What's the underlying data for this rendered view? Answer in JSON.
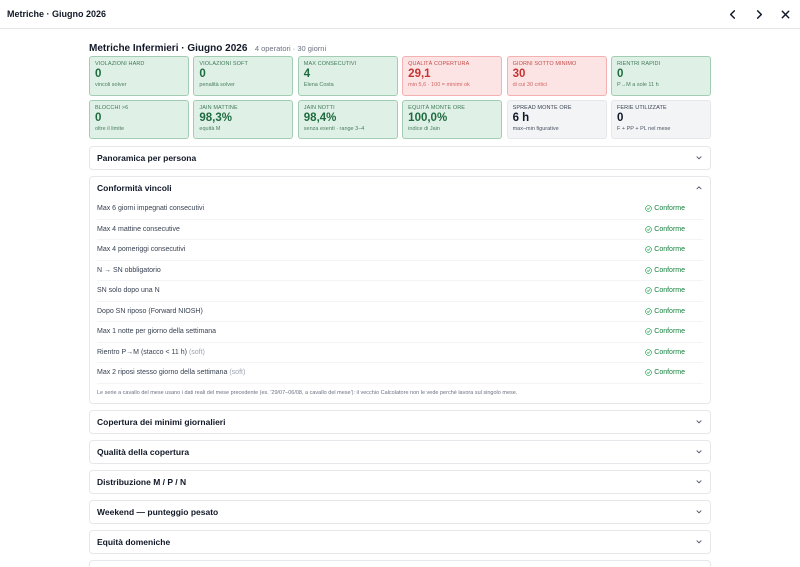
{
  "window": {
    "title": "Metriche · Giugno 2026"
  },
  "icons": {
    "prev": "chevron-left-icon",
    "next": "chevron-right-icon",
    "close": "close-icon",
    "ok": "check-circle-icon",
    "expand": "chevron-down-icon",
    "collapse": "chevron-up-icon"
  },
  "heading": {
    "title": "Metriche Infermieri · Giugno 2026",
    "subtitle": "4 operatori · 30 giorni"
  },
  "cards": [
    {
      "label": "Violazioni hard",
      "value": "0",
      "note": "vincoli solver",
      "tone": "green"
    },
    {
      "label": "Violazioni soft",
      "value": "0",
      "note": "penalità solver",
      "tone": "green"
    },
    {
      "label": "Max consecutivi",
      "value": "4",
      "note": "Elena Costa",
      "tone": "green"
    },
    {
      "label": "Qualità copertura",
      "value": "29,1",
      "note": "min 5,6 · 100 = minimi ok",
      "tone": "red"
    },
    {
      "label": "Giorni sotto minimo",
      "value": "30",
      "note": "di cui 30 critici",
      "tone": "red"
    },
    {
      "label": "Rientri rapidi",
      "value": "0",
      "note": "P→M a sole 11 h",
      "tone": "green"
    },
    {
      "label": "Blocchi >6",
      "value": "0",
      "note": "oltre il limite",
      "tone": "green"
    },
    {
      "label": "Jain mattine",
      "value": "98,3%",
      "note": "equità M",
      "tone": "green"
    },
    {
      "label": "Jain notti",
      "value": "98,4%",
      "note": "senza esenti · range 3–4",
      "tone": "green"
    },
    {
      "label": "Equità monte ore",
      "value": "100,0%",
      "note": "indice di Jain",
      "tone": "green"
    },
    {
      "label": "Spread monte ore",
      "value": "6 h",
      "note": "max–min figurative",
      "tone": "gray"
    },
    {
      "label": "Ferie utilizzate",
      "value": "0",
      "note": "F + PP + PL nel mese",
      "tone": "gray"
    }
  ],
  "sections": {
    "panoramica": "Panoramica per persona",
    "conformita": "Conformità vincoli",
    "copertura": "Copertura dei minimi giornalieri",
    "qualita": "Qualità della copertura",
    "distribuzione": "Distribuzione M / P / N",
    "weekend": "Weekend — punteggio pesato",
    "domeniche": "Equità domeniche"
  },
  "constraints": [
    {
      "label": "Max 6 giorni impegnati consecutivi",
      "soft": "",
      "status": "Conforme"
    },
    {
      "label": "Max 4 mattine consecutive",
      "soft": "",
      "status": "Conforme"
    },
    {
      "label": "Max 4 pomeriggi consecutivi",
      "soft": "",
      "status": "Conforme"
    },
    {
      "label": "N → SN obbligatorio",
      "soft": "",
      "status": "Conforme"
    },
    {
      "label": "SN solo dopo una N",
      "soft": "",
      "status": "Conforme"
    },
    {
      "label": "Dopo SN riposo (Forward NIOSH)",
      "soft": "",
      "status": "Conforme"
    },
    {
      "label": "Max 1 notte per giorno della settimana",
      "soft": "",
      "status": "Conforme"
    },
    {
      "label": "Rientro P→M (stacco < 11 h)",
      "soft": "(soft)",
      "status": "Conforme"
    },
    {
      "label": "Max 2 riposi stesso giorno della settimana",
      "soft": "(soft)",
      "status": "Conforme"
    }
  ],
  "footnote": "Le serie a cavallo del mese usano i dati reali del mese precedente (es. '29/07–06/08, a cavallo del mese'): il vecchio Calcolatore non le vede perché lavora sul singolo mese."
}
